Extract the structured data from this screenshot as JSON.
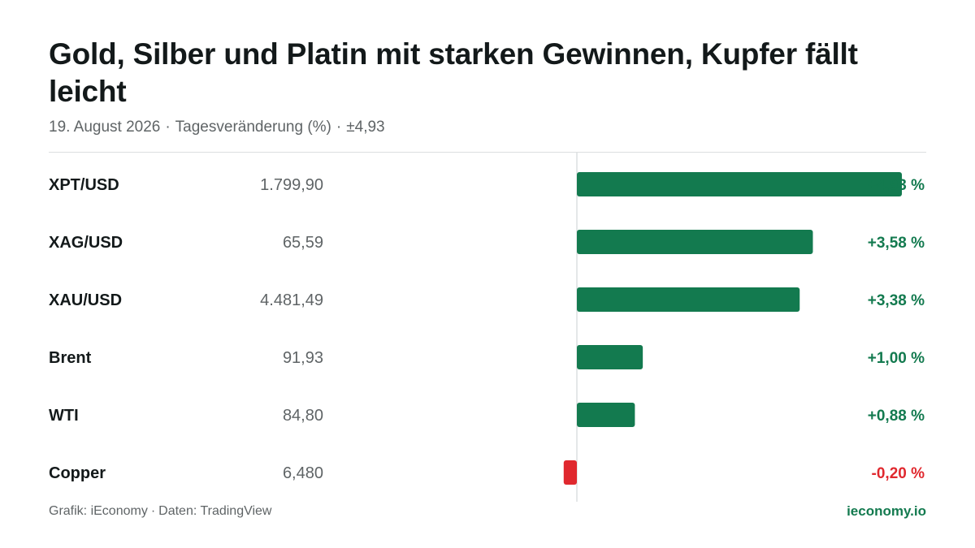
{
  "header": {
    "title": "Gold, Silber und Platin mit starken Gewinnen, Kupfer fällt leicht",
    "date": "19. August 2026",
    "metric": "Tagesveränderung (%)",
    "scale": "±4,93"
  },
  "footer": {
    "grafik": "Grafik: iEconomy",
    "daten": "Daten: TradingView",
    "brand": "ieconomy.io"
  },
  "colors": {
    "positive": "#137a4f",
    "negative": "#e0282e",
    "axis": "#dcdfe0"
  },
  "chart_data": {
    "type": "bar",
    "orientation": "horizontal",
    "categories": [
      "XPT/USD",
      "XAG/USD",
      "XAU/USD",
      "Brent",
      "WTI",
      "Copper"
    ],
    "prices": [
      "1.799,90",
      "65,59",
      "4.481,49",
      "91,93",
      "84,80",
      "6,480"
    ],
    "values": [
      4.93,
      3.58,
      3.38,
      1.0,
      0.88,
      -0.2
    ],
    "value_labels": [
      "+4,93 %",
      "+3,58 %",
      "+3,38 %",
      "+1,00 %",
      "+0,88 %",
      "-0,20 %"
    ],
    "xlim": [
      -4.93,
      4.93
    ],
    "grid": false,
    "legend": "none"
  }
}
